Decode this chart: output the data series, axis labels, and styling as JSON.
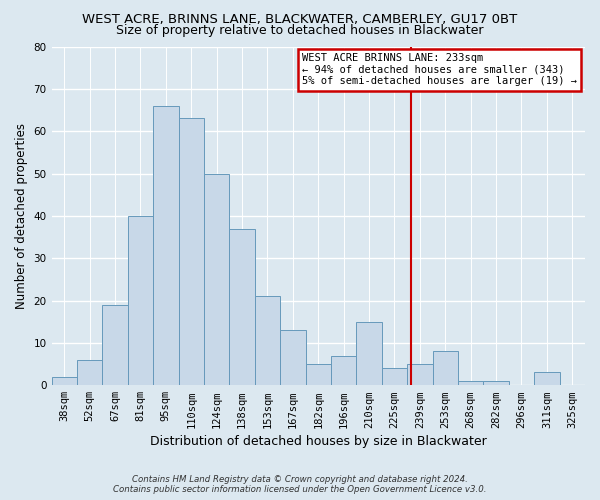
{
  "title": "WEST ACRE, BRINNS LANE, BLACKWATER, CAMBERLEY, GU17 0BT",
  "subtitle": "Size of property relative to detached houses in Blackwater",
  "xlabel": "Distribution of detached houses by size in Blackwater",
  "ylabel": "Number of detached properties",
  "bar_labels": [
    "38sqm",
    "52sqm",
    "67sqm",
    "81sqm",
    "95sqm",
    "110sqm",
    "124sqm",
    "138sqm",
    "153sqm",
    "167sqm",
    "182sqm",
    "196sqm",
    "210sqm",
    "225sqm",
    "239sqm",
    "253sqm",
    "268sqm",
    "282sqm",
    "296sqm",
    "311sqm",
    "325sqm"
  ],
  "bar_values": [
    2,
    6,
    19,
    40,
    66,
    63,
    50,
    37,
    21,
    13,
    5,
    7,
    15,
    4,
    5,
    8,
    1,
    1,
    0,
    3,
    0
  ],
  "bar_color": "#c8d8e8",
  "bar_edge_color": "#6699bb",
  "ylim": [
    0,
    80
  ],
  "yticks": [
    0,
    10,
    20,
    30,
    40,
    50,
    60,
    70,
    80
  ],
  "annotation_title": "WEST ACRE BRINNS LANE: 233sqm",
  "annotation_line1": "← 94% of detached houses are smaller (343)",
  "annotation_line2": "5% of semi-detached houses are larger (19) →",
  "vline_x_index": 13.65,
  "vline_color": "#cc0000",
  "annotation_box_facecolor": "#ffffff",
  "annotation_border_color": "#cc0000",
  "footer_line1": "Contains HM Land Registry data © Crown copyright and database right 2024.",
  "footer_line2": "Contains public sector information licensed under the Open Government Licence v3.0.",
  "bg_color": "#dce8f0",
  "grid_color": "#ffffff",
  "title_fontsize": 9.5,
  "subtitle_fontsize": 9.0,
  "ylabel_fontsize": 8.5,
  "xlabel_fontsize": 9.0,
  "tick_fontsize": 7.5
}
